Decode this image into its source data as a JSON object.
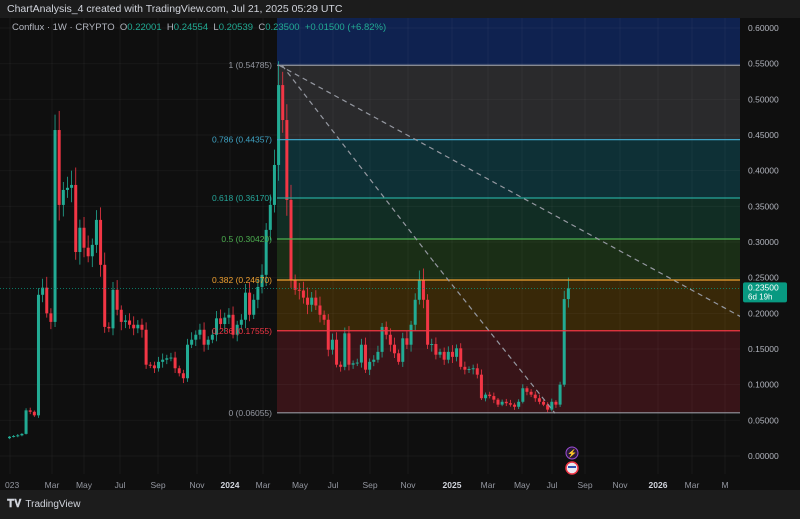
{
  "header": {
    "title": "ChartAnalysis_4 created with TradingView.com, Jul 21, 2025 05:29 UTC"
  },
  "legend": {
    "symbol": "Conflux · 1W · CRYPTO",
    "o_label": "O",
    "o": "0.22001",
    "h_label": "H",
    "h": "0.24554",
    "l_label": "L",
    "l": "0.20539",
    "c_label": "C",
    "c": "0.23500",
    "change": "+0.01500 (+6.82%)"
  },
  "footer": {
    "brand": "TradingView",
    "logo_icon": "tradingview-logo-icon"
  },
  "colors": {
    "up": "#22ab94",
    "down": "#f23645",
    "price_tag": "#089981",
    "background": "#0f0f0f"
  },
  "icons": [
    "lightning-icon",
    "us-flag-icon"
  ],
  "chart_data": {
    "type": "candlestick",
    "interval": "1W",
    "symbol": "Conflux",
    "ylim": [
      0,
      0.62
    ],
    "y_ticks": [
      "0.60000",
      "0.55000",
      "0.50000",
      "0.45000",
      "0.40000",
      "0.35000",
      "0.30000",
      "0.25000",
      "0.20000",
      "0.15000",
      "0.10000",
      "0.05000",
      "0.00000"
    ],
    "x_ticks": [
      "2023",
      "Mar",
      "May",
      "Jul",
      "Sep",
      "Nov",
      "2024",
      "Mar",
      "May",
      "Jul",
      "Sep",
      "Nov",
      "2025",
      "Mar",
      "May",
      "Jul",
      "Sep",
      "Nov",
      "2026",
      "Mar",
      "M"
    ],
    "x_ticks_bold": [
      "2024",
      "2025",
      "2026"
    ],
    "last_price": "0.23500",
    "countdown": "6d 19h",
    "grid": true,
    "closes": [
      0.025,
      0.027,
      0.028,
      0.029,
      0.031,
      0.064,
      0.062,
      0.057,
      0.226,
      0.236,
      0.2,
      0.188,
      0.457,
      0.352,
      0.373,
      0.376,
      0.38,
      0.286,
      0.32,
      0.292,
      0.28,
      0.296,
      0.331,
      0.268,
      0.181,
      0.179,
      0.233,
      0.205,
      0.188,
      0.19,
      0.184,
      0.179,
      0.184,
      0.177,
      0.128,
      0.127,
      0.123,
      0.132,
      0.135,
      0.137,
      0.138,
      0.123,
      0.116,
      0.109,
      0.156,
      0.163,
      0.17,
      0.177,
      0.156,
      0.163,
      0.17,
      0.193,
      0.185,
      0.194,
      0.198,
      0.17,
      0.184,
      0.191,
      0.229,
      0.198,
      0.219,
      0.237,
      0.254,
      0.317,
      0.352,
      0.408,
      0.52,
      0.471,
      0.359,
      0.247,
      0.233,
      0.232,
      0.222,
      0.212,
      0.222,
      0.211,
      0.198,
      0.191,
      0.149,
      0.163,
      0.128,
      0.125,
      0.172,
      0.128,
      0.13,
      0.131,
      0.156,
      0.121,
      0.132,
      0.135,
      0.146,
      0.181,
      0.17,
      0.156,
      0.144,
      0.132,
      0.165,
      0.156,
      0.184,
      0.219,
      0.247,
      0.219,
      0.156,
      0.157,
      0.142,
      0.146,
      0.135,
      0.146,
      0.139,
      0.151,
      0.125,
      0.121,
      0.122,
      0.123,
      0.114,
      0.081,
      0.086,
      0.084,
      0.079,
      0.072,
      0.076,
      0.074,
      0.072,
      0.069,
      0.076,
      0.095,
      0.09,
      0.086,
      0.081,
      0.076,
      0.072,
      0.065,
      0.076,
      0.072,
      0.1,
      0.22001,
      0.235
    ],
    "fib_levels": [
      {
        "label": "1 (0.54785)",
        "level": 1,
        "price": 0.54785,
        "color": "#9598a1",
        "fill": "#2a2a2c"
      },
      {
        "label": "0.786 (0.44357)",
        "level": 0.786,
        "price": 0.44357,
        "color": "#3fa3c4",
        "fill": "#0e3036"
      },
      {
        "label": "0.618 (0.36170)",
        "level": 0.618,
        "price": 0.3617,
        "color": "#26a69a",
        "fill": "#112d24"
      },
      {
        "label": "0.5 (0.30420)",
        "level": 0.5,
        "price": 0.3042,
        "color": "#4caf50",
        "fill": "#1a2e16"
      },
      {
        "label": "0.382 (0.24670)",
        "level": 0.382,
        "price": 0.2467,
        "color": "#f0a030",
        "fill": "#382808"
      },
      {
        "label": "0.236 (0.17555)",
        "level": 0.236,
        "price": 0.17555,
        "color": "#f23645",
        "fill": "#381418"
      },
      {
        "label": "0 (0.06055)",
        "level": 0,
        "price": 0.06055,
        "color": "#9598a1",
        "fill": null
      }
    ],
    "above_fill": "#0f2250"
  }
}
